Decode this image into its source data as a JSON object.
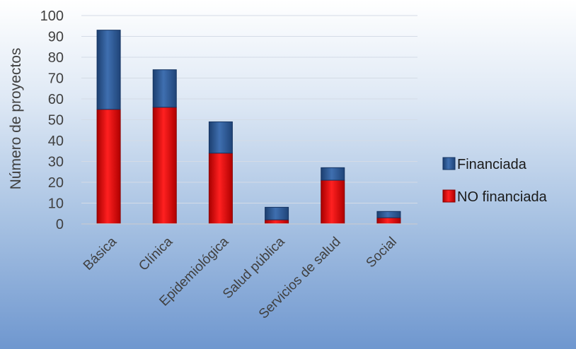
{
  "chart_data": {
    "type": "bar",
    "stacked": true,
    "categories": [
      "Básica",
      "Clínica",
      "Epidemiológica",
      "Salud pública",
      "Servicios de salud",
      "Social"
    ],
    "series": [
      {
        "name": "NO financiada",
        "values": [
          55,
          56,
          34,
          2,
          21,
          3
        ],
        "color": "#e01010"
      },
      {
        "name": "Financiada",
        "values": [
          38,
          18,
          15,
          6,
          6,
          3
        ],
        "color": "#2e5a96"
      }
    ],
    "ylabel": "Número de proyectos",
    "ylim": [
      0,
      100
    ],
    "yticks": [
      0,
      10,
      20,
      30,
      40,
      50,
      60,
      70,
      80,
      90,
      100
    ],
    "grid": true,
    "legend": "right"
  }
}
